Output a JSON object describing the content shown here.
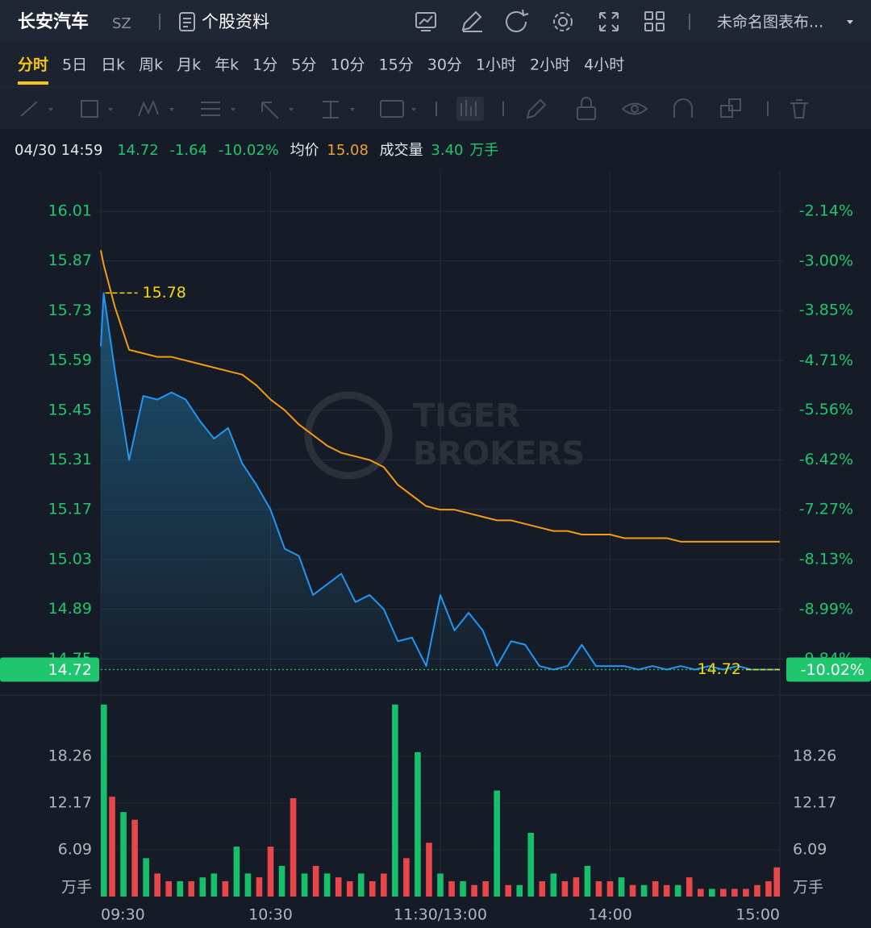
{
  "header": {
    "name": "长安汽车",
    "market": "SZ",
    "profile": "个股资料",
    "layout": "未命名图表布..."
  },
  "periods": [
    "分时",
    "5日",
    "日k",
    "周k",
    "月k",
    "年k",
    "1分",
    "5分",
    "10分",
    "15分",
    "30分",
    "1小时",
    "2小时",
    "4小时"
  ],
  "quote": {
    "time": "04/30 14:59",
    "price": "14.72",
    "change": "-1.64",
    "change_pct": "-10.02%",
    "avg_label": "均价",
    "avg": "15.08",
    "vol_label": "成交量",
    "vol": "3.40",
    "vol_unit": "万手"
  },
  "watermark": [
    "TIGER",
    "BROKERS"
  ],
  "chart_data": [
    {
      "type": "line",
      "x": [
        0,
        1,
        5,
        10,
        15,
        20,
        25,
        30,
        35,
        40,
        45,
        50,
        55,
        60,
        65,
        70,
        75,
        80,
        85,
        90,
        95,
        100,
        105,
        110,
        115,
        120,
        125,
        130,
        135,
        140,
        145,
        150,
        155,
        160,
        165,
        170,
        175,
        180,
        185,
        190,
        195,
        200,
        205,
        210,
        215,
        220,
        225,
        230,
        235,
        240
      ],
      "series": [
        {
          "color": "#2196f3",
          "values": [
            15.63,
            15.78,
            15.56,
            15.31,
            15.49,
            15.48,
            15.5,
            15.48,
            15.42,
            15.37,
            15.4,
            15.3,
            15.24,
            15.17,
            15.06,
            15.04,
            14.93,
            14.96,
            14.99,
            14.91,
            14.93,
            14.89,
            14.8,
            14.81,
            14.73,
            14.93,
            14.83,
            14.88,
            14.83,
            14.73,
            14.8,
            14.79,
            14.73,
            14.72,
            14.73,
            14.79,
            14.73,
            14.73,
            14.73,
            14.72,
            14.73,
            14.72,
            14.73,
            14.72,
            14.73,
            14.72,
            14.73,
            14.72,
            14.72,
            14.72
          ]
        },
        {
          "color": "#f39c12",
          "values": [
            15.9,
            15.86,
            15.74,
            15.62,
            15.61,
            15.6,
            15.6,
            15.59,
            15.58,
            15.57,
            15.56,
            15.55,
            15.52,
            15.48,
            15.45,
            15.41,
            15.38,
            15.35,
            15.33,
            15.32,
            15.31,
            15.29,
            15.24,
            15.21,
            15.18,
            15.17,
            15.17,
            15.16,
            15.15,
            15.14,
            15.14,
            15.13,
            15.12,
            15.11,
            15.11,
            15.1,
            15.1,
            15.1,
            15.09,
            15.09,
            15.09,
            15.09,
            15.08,
            15.08,
            15.08,
            15.08,
            15.08,
            15.08,
            15.08,
            15.08
          ]
        }
      ],
      "xlim": [
        0,
        240
      ],
      "ylim": [
        14.72,
        16.12
      ],
      "yticks": [
        16.01,
        15.87,
        15.73,
        15.59,
        15.45,
        15.31,
        15.17,
        15.03,
        14.89,
        14.75
      ],
      "y2lim": [
        -10.02,
        -1.47
      ],
      "y2ticks": [
        {
          "value": -2.14,
          "label": "-2.14%"
        },
        {
          "value": -3.0,
          "label": "-3.00%"
        },
        {
          "value": -3.85,
          "label": "-3.85%"
        },
        {
          "value": -4.71,
          "label": "-4.71%"
        },
        {
          "value": -5.56,
          "label": "-5.56%"
        },
        {
          "value": -6.42,
          "label": "-6.42%"
        },
        {
          "value": -7.27,
          "label": "-7.27%"
        },
        {
          "value": -8.13,
          "label": "-8.13%"
        },
        {
          "value": -8.99,
          "label": "-8.99%"
        },
        {
          "value": -9.84,
          "label": "-9.84%"
        }
      ],
      "annotations": [
        {
          "x": 1,
          "value": 15.78
        },
        {
          "x": 240,
          "value": 14.72
        }
      ],
      "grid": true
    },
    {
      "type": "bar",
      "unit": "万手",
      "x": [
        0,
        4,
        8,
        12,
        16,
        20,
        24,
        28,
        32,
        36,
        40,
        44,
        48,
        52,
        56,
        60,
        64,
        68,
        72,
        76,
        80,
        84,
        88,
        92,
        96,
        100,
        104,
        108,
        112,
        116,
        120,
        124,
        128,
        132,
        136,
        140,
        144,
        148,
        152,
        156,
        160,
        164,
        168,
        172,
        176,
        180,
        184,
        188,
        192,
        196,
        200,
        204,
        208,
        212,
        216,
        220,
        224,
        228,
        232,
        236,
        240
      ],
      "values": [
        25,
        13,
        11,
        10,
        5,
        3,
        2,
        2,
        2,
        2.5,
        3,
        2,
        6.5,
        3,
        2.5,
        6.5,
        4,
        12.8,
        3,
        4,
        3,
        2.5,
        2,
        3,
        2,
        3,
        25,
        5,
        18.8,
        7,
        3,
        2,
        2,
        1.5,
        2,
        13.8,
        1.5,
        1.5,
        8.3,
        2,
        3,
        2,
        2.5,
        4,
        2,
        2,
        2.5,
        1.5,
        1.5,
        2,
        1.5,
        1.5,
        2.5,
        1,
        1,
        1,
        1,
        1,
        1.5,
        2,
        3.8
      ],
      "colors": [
        "#16c06b",
        "#e8474a",
        "#16c06b",
        "#e8474a",
        "#16c06b",
        "#e8474a",
        "#e8474a",
        "#16c06b",
        "#e8474a",
        "#16c06b",
        "#16c06b",
        "#e8474a",
        "#16c06b",
        "#16c06b",
        "#e8474a",
        "#e8474a",
        "#16c06b",
        "#e8474a",
        "#16c06b",
        "#e8474a",
        "#16c06b",
        "#e8474a",
        "#e8474a",
        "#16c06b",
        "#e8474a",
        "#e8474a",
        "#16c06b",
        "#e8474a",
        "#16c06b",
        "#e8474a",
        "#16c06b",
        "#e8474a",
        "#16c06b",
        "#e8474a",
        "#e8474a",
        "#16c06b",
        "#e8474a",
        "#16c06b",
        "#16c06b",
        "#e8474a",
        "#16c06b",
        "#e8474a",
        "#e8474a",
        "#16c06b",
        "#e8474a",
        "#e8474a",
        "#16c06b",
        "#e8474a",
        "#16c06b",
        "#e8474a",
        "#e8474a",
        "#16c06b",
        "#e8474a",
        "#e8474a",
        "#16c06b",
        "#e8474a",
        "#e8474a",
        "#e8474a",
        "#e8474a",
        "#e8474a",
        "#e8474a"
      ],
      "xlim": [
        0,
        240
      ],
      "ylim": [
        0,
        25.4
      ],
      "yticks": [
        6.09,
        12.17,
        18.26
      ],
      "xticks": [
        {
          "value": 0,
          "label": "09:30"
        },
        {
          "value": 60,
          "label": "10:30"
        },
        {
          "value": 120,
          "label": "11:30/13:00"
        },
        {
          "value": 180,
          "label": "14:00"
        },
        {
          "value": 240,
          "label": "15:00"
        }
      ],
      "grid": true
    }
  ]
}
